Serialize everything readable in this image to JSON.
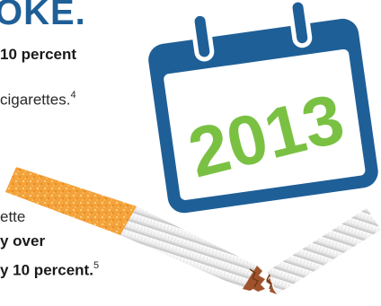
{
  "headline": "OKE.",
  "paragraph1": {
    "line1_bold": "10 percent",
    "line2_text": "cigarettes.",
    "line2_sup": "4"
  },
  "paragraph2": {
    "line1_text": "ette",
    "line2_bold": "y over",
    "line3_bold": "y 10 percent.",
    "line3_sup": "5"
  },
  "calendar": {
    "year": "2013",
    "accent_color": "#1f5f97",
    "year_color": "#7ac143"
  },
  "cigarette": {
    "filter_color": "#f4a23a",
    "paper_color": "#f2f2f2"
  }
}
